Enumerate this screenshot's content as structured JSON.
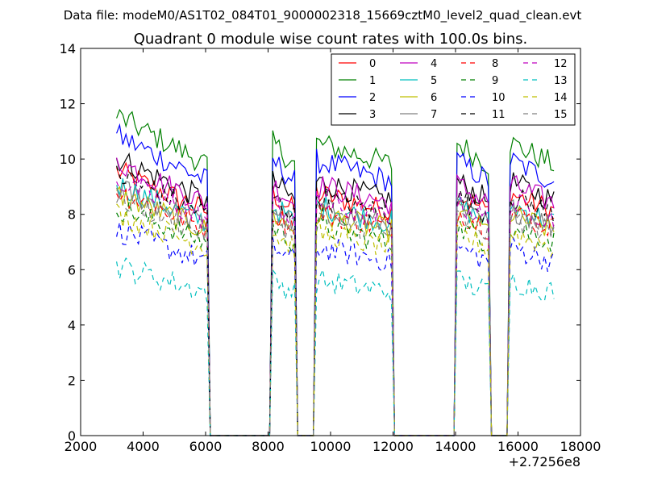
{
  "suptitle": "Data file: modeM0/AS1T02_084T01_9000002318_15669cztM0_level2_quad_clean.evt",
  "chart_data": {
    "type": "line",
    "title": "Quadrant 0 module wise count rates with 100.0s bins.",
    "xlabel": "",
    "ylabel": "",
    "x_offset_label": "+2.7256e8",
    "x_offset": 272560000,
    "xlim": [
      2000,
      18000
    ],
    "ylim": [
      0,
      14
    ],
    "xticks": [
      2000,
      4000,
      6000,
      8000,
      10000,
      12000,
      14000,
      16000,
      18000
    ],
    "xtick_labels": [
      "2000",
      "4000",
      "6000",
      "8000",
      "10000",
      "12000",
      "14000",
      "16000",
      "18000"
    ],
    "yticks": [
      0,
      2,
      4,
      6,
      8,
      10,
      12,
      14
    ],
    "ytick_labels": [
      "0",
      "2",
      "4",
      "6",
      "8",
      "10",
      "12",
      "14"
    ],
    "legend_placement": "top-right",
    "bin_width": 100,
    "x_start": 3150,
    "segments": [
      [
        3150,
        6050
      ],
      [
        8150,
        8850
      ],
      [
        9550,
        11950
      ],
      [
        14050,
        15050
      ],
      [
        15750,
        17150
      ]
    ],
    "series": [
      {
        "name": "0",
        "color": "#ff0000",
        "dash": "solid",
        "level": 8.1
      },
      {
        "name": "1",
        "color": "#008000",
        "dash": "solid",
        "level": 9.8
      },
      {
        "name": "2",
        "color": "#0000ff",
        "dash": "solid",
        "level": 9.2
      },
      {
        "name": "3",
        "color": "#000000",
        "dash": "solid",
        "level": 8.5
      },
      {
        "name": "4",
        "color": "#bf00bf",
        "dash": "solid",
        "level": 8.4
      },
      {
        "name": "5",
        "color": "#00bfbf",
        "dash": "solid",
        "level": 7.7
      },
      {
        "name": "6",
        "color": "#bfbf00",
        "dash": "solid",
        "level": 7.4
      },
      {
        "name": "7",
        "color": "#808080",
        "dash": "solid",
        "level": 7.6
      },
      {
        "name": "8",
        "color": "#ff0000",
        "dash": "dashed",
        "level": 7.5
      },
      {
        "name": "9",
        "color": "#008000",
        "dash": "dashed",
        "level": 7.0
      },
      {
        "name": "10",
        "color": "#0000ff",
        "dash": "dashed",
        "level": 6.3
      },
      {
        "name": "11",
        "color": "#000000",
        "dash": "dashed",
        "level": 8.0
      },
      {
        "name": "12",
        "color": "#bf00bf",
        "dash": "dashed",
        "level": 7.8
      },
      {
        "name": "13",
        "color": "#00bfbf",
        "dash": "dashed",
        "level": 5.2
      },
      {
        "name": "14",
        "color": "#bfbf00",
        "dash": "dashed",
        "level": 6.8
      },
      {
        "name": "15",
        "color": "#808080",
        "dash": "dashed",
        "level": 7.3
      }
    ]
  }
}
